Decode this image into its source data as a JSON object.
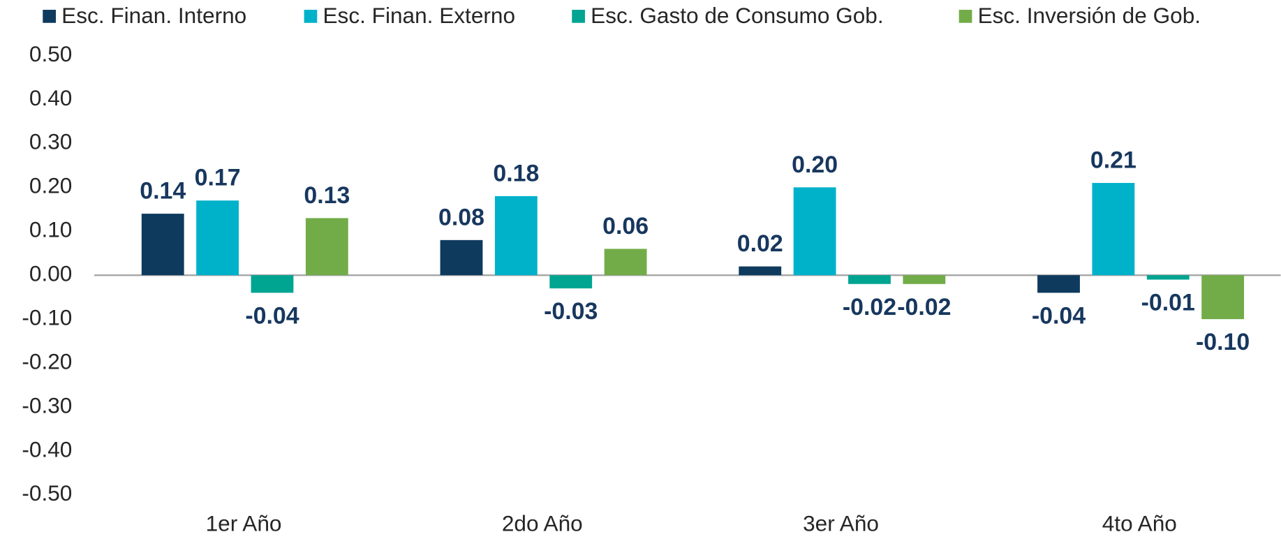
{
  "chart_data": {
    "type": "bar",
    "categories": [
      "1er Año",
      "2do Año",
      "3er Año",
      "4to Año"
    ],
    "series": [
      {
        "name": "Esc. Finan. Interno",
        "color": "#0e3a5e",
        "values": [
          0.14,
          0.08,
          0.02,
          -0.04
        ],
        "value_labels": [
          "0.14",
          "0.08",
          "0.02",
          "-0.04"
        ]
      },
      {
        "name": "Esc. Finan. Externo",
        "color": "#00b1ca",
        "values": [
          0.17,
          0.18,
          0.2,
          0.21
        ],
        "value_labels": [
          "0.17",
          "0.18",
          "0.20",
          "0.21"
        ]
      },
      {
        "name": "Esc. Gasto de Consumo Gob.",
        "color": "#00a592",
        "values": [
          -0.04,
          -0.03,
          -0.02,
          -0.01
        ],
        "value_labels": [
          "-0.04",
          "-0.03",
          "-0.02",
          "-0.01"
        ]
      },
      {
        "name": "Esc. Inversión de Gob.",
        "color": "#72ac48",
        "values": [
          0.13,
          0.06,
          -0.02,
          -0.1
        ],
        "value_labels": [
          "0.13",
          "0.06",
          "-0.02",
          "-0.10"
        ]
      }
    ],
    "ylim": [
      -0.5,
      0.5
    ],
    "yticks": [
      {
        "value": -0.5,
        "label": "-0.50"
      },
      {
        "value": -0.4,
        "label": "-0.40"
      },
      {
        "value": -0.3,
        "label": "-0.30"
      },
      {
        "value": -0.2,
        "label": "-0.20"
      },
      {
        "value": -0.1,
        "label": "-0.10"
      },
      {
        "value": 0,
        "label": "0.00"
      },
      {
        "value": 0.1,
        "label": "0.10"
      },
      {
        "value": 0.2,
        "label": "0.20"
      },
      {
        "value": 0.3,
        "label": "0.30"
      },
      {
        "value": 0.4,
        "label": "0.40"
      },
      {
        "value": 0.5,
        "label": "0.50"
      }
    ],
    "grid": false,
    "legend": "top"
  }
}
